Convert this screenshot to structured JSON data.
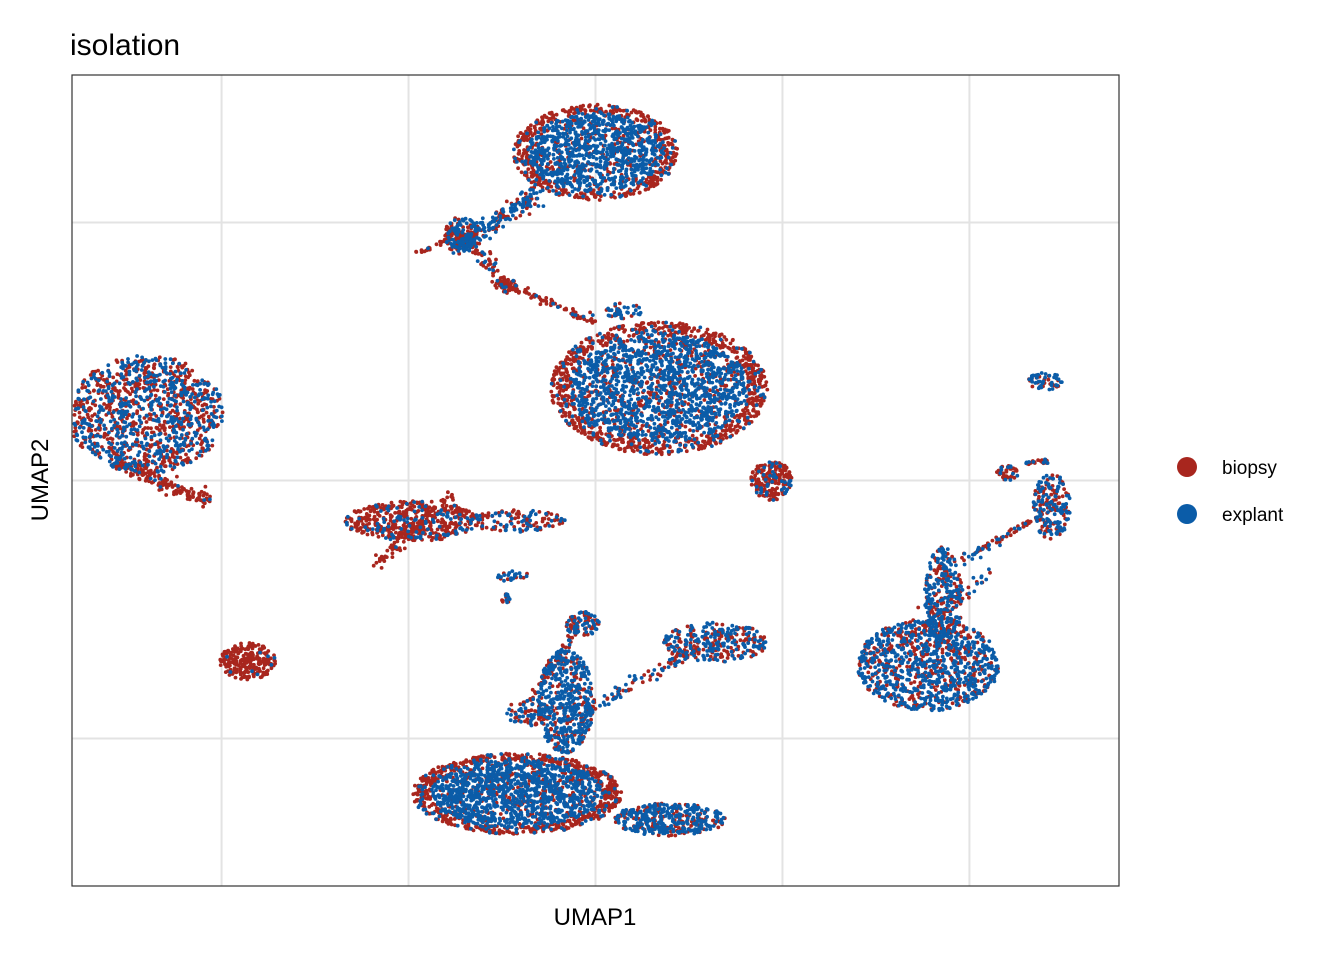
{
  "chart_data": {
    "type": "scatter",
    "title": "isolation",
    "xlabel": "UMAP1",
    "ylabel": "UMAP2",
    "xlim": [
      -14,
      14
    ],
    "ylim": [
      -11,
      11
    ],
    "x_gridlines": [
      -10,
      -5,
      0,
      5,
      10
    ],
    "y_gridlines": [
      -7,
      0,
      7
    ],
    "tick_labels_shown": false,
    "grid": true,
    "legend_position": "right",
    "series": [
      {
        "name": "biopsy",
        "color": "#A8261E"
      },
      {
        "name": "explant",
        "color": "#0B5CA8"
      }
    ],
    "clusters": [
      {
        "cx": 0.0,
        "cy": 8.9,
        "rx": 2.2,
        "ry": 1.3,
        "n": 1500,
        "red": 0.35,
        "red_halo": true
      },
      {
        "cx": -3.6,
        "cy": 6.7,
        "rx": 0.45,
        "ry": 0.45,
        "n": 150,
        "red": 0.5
      },
      {
        "cx": -2.4,
        "cy": 5.3,
        "rx": 0.3,
        "ry": 0.22,
        "n": 50,
        "red": 0.95
      },
      {
        "cx": 0.75,
        "cy": 4.6,
        "rx": 0.5,
        "ry": 0.22,
        "n": 40,
        "red": 0.2
      },
      {
        "cx": 1.7,
        "cy": 2.5,
        "rx": 2.9,
        "ry": 1.8,
        "n": 2500,
        "red": 0.4,
        "red_halo": true
      },
      {
        "cx": 4.7,
        "cy": 0.0,
        "rx": 0.55,
        "ry": 0.55,
        "n": 200,
        "red": 0.85
      },
      {
        "cx": -12.0,
        "cy": 1.8,
        "rx": 2.1,
        "ry": 1.6,
        "n": 1200,
        "red": 0.55
      },
      {
        "cx": -4.9,
        "cy": -1.1,
        "rx": 1.8,
        "ry": 0.55,
        "n": 500,
        "red": 0.85
      },
      {
        "cx": -2.1,
        "cy": -1.1,
        "rx": 1.3,
        "ry": 0.3,
        "n": 120,
        "red": 0.6
      },
      {
        "cx": -9.3,
        "cy": -4.9,
        "rx": 0.75,
        "ry": 0.5,
        "n": 250,
        "red": 0.95
      },
      {
        "cx": -2.4,
        "cy": -3.2,
        "rx": 0.12,
        "ry": 0.12,
        "n": 15,
        "red": 0.4
      },
      {
        "cx": -2.2,
        "cy": -2.6,
        "rx": 0.45,
        "ry": 0.15,
        "n": 25,
        "red": 0.3
      },
      {
        "cx": -0.35,
        "cy": -3.9,
        "rx": 0.45,
        "ry": 0.35,
        "n": 90,
        "red": 0.5
      },
      {
        "cx": 3.2,
        "cy": -4.4,
        "rx": 1.4,
        "ry": 0.55,
        "n": 300,
        "red": 0.45
      },
      {
        "cx": -1.8,
        "cy": -6.3,
        "rx": 0.6,
        "ry": 0.35,
        "n": 80,
        "red": 0.4
      },
      {
        "cx": -2.1,
        "cy": -8.5,
        "rx": 2.8,
        "ry": 1.1,
        "n": 2000,
        "red": 0.35,
        "red_halo": true
      },
      {
        "cx": -0.8,
        "cy": -6.0,
        "rx": 0.75,
        "ry": 1.4,
        "n": 500,
        "red": 0.25
      },
      {
        "cx": 2.0,
        "cy": -9.2,
        "rx": 1.5,
        "ry": 0.45,
        "n": 400,
        "red": 0.35
      },
      {
        "cx": 8.9,
        "cy": -5.0,
        "rx": 1.9,
        "ry": 1.25,
        "n": 1000,
        "red": 0.35
      },
      {
        "cx": 9.3,
        "cy": -3.2,
        "rx": 0.5,
        "ry": 1.4,
        "n": 300,
        "red": 0.4
      },
      {
        "cx": 12.2,
        "cy": -0.7,
        "rx": 0.5,
        "ry": 0.9,
        "n": 200,
        "red": 0.45
      },
      {
        "cx": 12.0,
        "cy": 2.7,
        "rx": 0.5,
        "ry": 0.25,
        "n": 60,
        "red": 0.4
      },
      {
        "cx": 11.0,
        "cy": 0.2,
        "rx": 0.3,
        "ry": 0.2,
        "n": 40,
        "red": 0.8
      }
    ],
    "trails": [
      {
        "from": [
          -1.5,
          7.8
        ],
        "to": [
          -3.8,
          6.3
        ],
        "n": 200,
        "spread": 0.35,
        "red": 0.35
      },
      {
        "from": [
          -3.6,
          6.7
        ],
        "to": [
          -2.4,
          5.3
        ],
        "n": 60,
        "spread": 0.25,
        "red": 0.7
      },
      {
        "from": [
          -2.4,
          5.3
        ],
        "to": [
          0.0,
          4.3
        ],
        "n": 70,
        "spread": 0.15,
        "red": 0.9
      },
      {
        "from": [
          -4.0,
          6.5
        ],
        "to": [
          -4.9,
          6.1
        ],
        "n": 20,
        "spread": 0.08,
        "red": 0.9
      },
      {
        "from": [
          -1.8,
          -6.0
        ],
        "to": [
          -0.5,
          -4.0
        ],
        "n": 60,
        "spread": 0.2,
        "red": 0.6
      },
      {
        "from": [
          -0.3,
          -6.3
        ],
        "to": [
          2.6,
          -4.6
        ],
        "n": 90,
        "spread": 0.25,
        "red": 0.6
      },
      {
        "from": [
          7.4,
          -5.0
        ],
        "to": [
          10.5,
          -2.5
        ],
        "n": 80,
        "spread": 0.3,
        "red": 0.6
      },
      {
        "from": [
          9.8,
          -2.2
        ],
        "to": [
          12.0,
          -0.9
        ],
        "n": 70,
        "spread": 0.15,
        "red": 0.55
      },
      {
        "from": [
          11.5,
          0.5
        ],
        "to": [
          12.1,
          0.5
        ],
        "n": 25,
        "spread": 0.1,
        "red": 0.6
      },
      {
        "from": [
          -5.9,
          -2.3
        ],
        "to": [
          -3.8,
          -0.4
        ],
        "n": 80,
        "spread": 0.2,
        "red": 0.95
      },
      {
        "from": [
          -12.9,
          0.5
        ],
        "to": [
          -10.3,
          -0.6
        ],
        "n": 150,
        "spread": 0.25,
        "red": 0.95
      }
    ]
  }
}
